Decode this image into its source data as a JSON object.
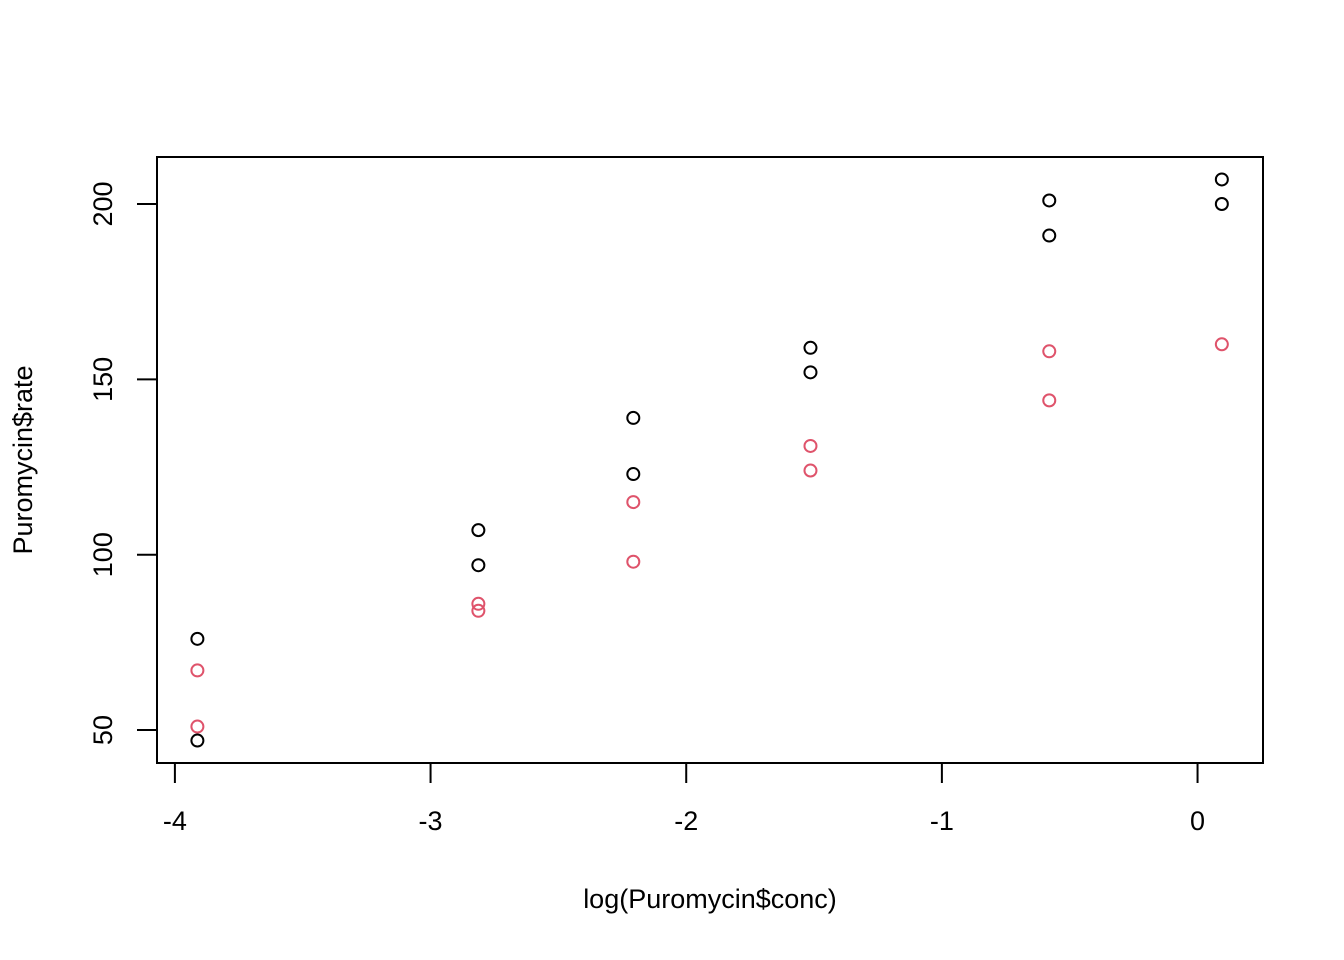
{
  "chart_data": {
    "type": "scatter",
    "x_label": "log(Puromycin$conc)",
    "y_label": "Puromycin$rate",
    "series": [
      {
        "color": "#000000",
        "x": [
          -3.912,
          -3.912,
          -2.813,
          -2.813,
          -2.207,
          -2.207,
          -1.514,
          -1.514,
          -0.58,
          -0.58,
          0.095,
          0.095
        ],
        "values": [
          76,
          47,
          97,
          107,
          123,
          139,
          159,
          152,
          191,
          201,
          207,
          200
        ]
      },
      {
        "color": "#DF536B",
        "x": [
          -3.912,
          -3.912,
          -2.813,
          -2.813,
          -2.207,
          -2.207,
          -1.514,
          -1.514,
          -0.58,
          -0.58,
          0.095
        ],
        "values": [
          67,
          51,
          84,
          86,
          98,
          115,
          131,
          124,
          144,
          158,
          160
        ]
      }
    ],
    "xlim": [
      -4.07,
      0.256
    ],
    "ylim": [
      40.6,
      213.4
    ],
    "xticks": [
      -4,
      -3,
      -2,
      -1,
      0
    ],
    "yticks": [
      50,
      100,
      150,
      200
    ]
  }
}
